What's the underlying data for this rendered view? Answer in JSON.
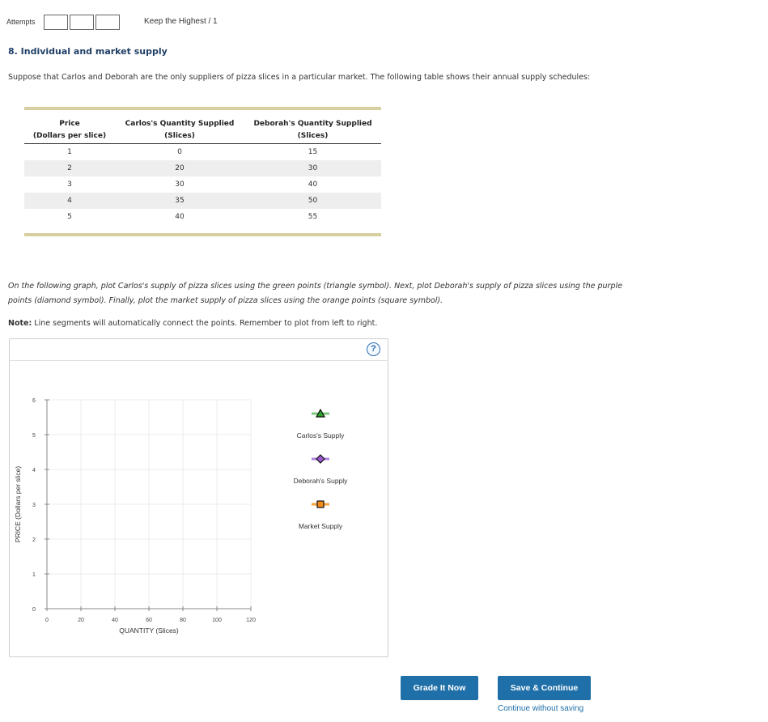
{
  "attempts": {
    "label": "Attempts",
    "policy": "Keep the Highest / 1"
  },
  "question": {
    "title": "8. Individual and market supply",
    "intro": "Suppose that Carlos and Deborah are the only suppliers of pizza slices in a particular market. The following table shows their annual supply schedules:"
  },
  "table": {
    "headers": [
      {
        "line1": "Price",
        "line2": "(Dollars per slice)"
      },
      {
        "line1": "Carlos's Quantity Supplied",
        "line2": "(Slices)"
      },
      {
        "line1": "Deborah's Quantity Supplied",
        "line2": "(Slices)"
      }
    ],
    "rows": [
      [
        "1",
        "0",
        "15"
      ],
      [
        "2",
        "20",
        "30"
      ],
      [
        "3",
        "30",
        "40"
      ],
      [
        "4",
        "35",
        "50"
      ],
      [
        "5",
        "40",
        "55"
      ]
    ]
  },
  "graph_instructions": "On the following graph, plot Carlos's supply of pizza slices using the green points (triangle symbol). Next, plot Deborah's supply of pizza slices using the purple points (diamond symbol). Finally, plot the market supply of pizza slices using the orange points (square symbol).",
  "note": {
    "label": "Note:",
    "text": "Line segments will automatically connect the points. Remember to plot from left to right."
  },
  "help_icon_text": "?",
  "chart_data": {
    "type": "scatter",
    "xlabel": "QUANTITY (Slices)",
    "ylabel": "PRICE (Dollars per slice)",
    "xlim": [
      0,
      120
    ],
    "ylim": [
      0,
      6
    ],
    "x_ticks": [
      "0",
      "20",
      "40",
      "60",
      "80",
      "100",
      "120"
    ],
    "y_ticks": [
      "0",
      "1",
      "2",
      "3",
      "4",
      "5",
      "6"
    ],
    "grid": true,
    "series": [],
    "legend": [
      {
        "name": "Carlos's Supply",
        "symbol": "triangle",
        "color": "#7fc97f",
        "fill": "#2ca02c"
      },
      {
        "name": "Deborah's Supply",
        "symbol": "diamond",
        "color": "#b084e0",
        "fill": "#9b59d0"
      },
      {
        "name": "Market Supply",
        "symbol": "square",
        "color": "#f4a340",
        "fill": "#f28c1a"
      }
    ]
  },
  "buttons": {
    "grade": "Grade It Now",
    "save": "Save & Continue",
    "continue": "Continue without saving"
  }
}
